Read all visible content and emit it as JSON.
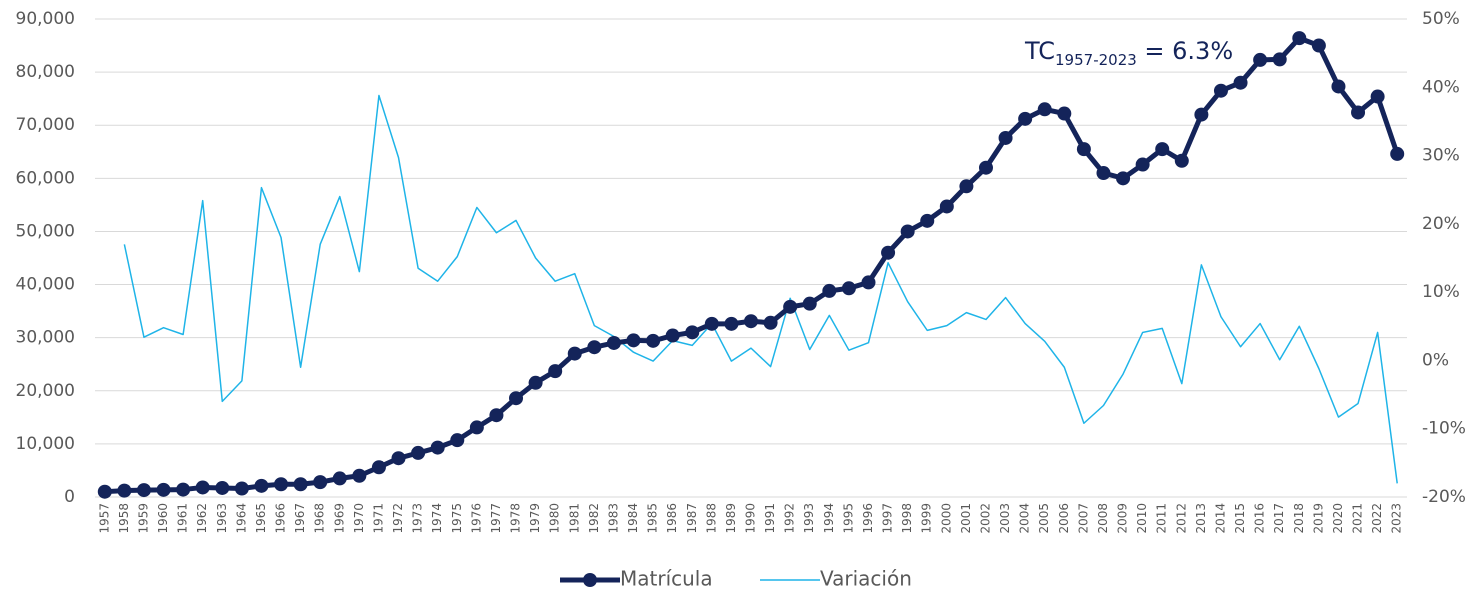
{
  "chart_data": {
    "type": "line",
    "annotation": {
      "main": "TC",
      "subscript": "1957-2023",
      "rest": " = 6.3%"
    },
    "categories": [
      "1957",
      "1958",
      "1959",
      "1960",
      "1961",
      "1962",
      "1963",
      "1964",
      "1965",
      "1966",
      "1967",
      "1968",
      "1969",
      "1970",
      "1971",
      "1972",
      "1973",
      "1974",
      "1975",
      "1976",
      "1977",
      "1978",
      "1979",
      "1980",
      "1981",
      "1982",
      "1983",
      "1984",
      "1985",
      "1986",
      "1987",
      "1988",
      "1989",
      "1990",
      "1991",
      "1992",
      "1993",
      "1994",
      "1995",
      "1996",
      "1997",
      "1998",
      "1999",
      "2000",
      "2001",
      "2002",
      "2003",
      "2004",
      "2005",
      "2006",
      "2007",
      "2008",
      "2009",
      "2010",
      "2011",
      "2012",
      "2013",
      "2014",
      "2015",
      "2016",
      "2017",
      "2018",
      "2019",
      "2020",
      "2021",
      "2022",
      "2023"
    ],
    "series": [
      {
        "name": "Matrícula",
        "color": "#14245a",
        "values": [
          1000,
          1200,
          1300,
          1350,
          1400,
          1800,
          1700,
          1600,
          2100,
          2400,
          2400,
          2800,
          3500,
          4000,
          5600,
          7300,
          8300,
          9300,
          10700,
          13100,
          15400,
          18600,
          21500,
          23700,
          27000,
          28200,
          29000,
          29500,
          29400,
          30400,
          31000,
          32600,
          32600,
          33100,
          32800,
          35800,
          36400,
          38800,
          39300,
          40400,
          46000,
          50000,
          52000,
          54700,
          58500,
          62000,
          67600,
          71200,
          73000,
          72200,
          65500,
          61000,
          60000,
          62600,
          65500,
          63300,
          72000,
          76500,
          78000,
          82300,
          82400,
          86400,
          85000,
          77300,
          72400,
          75400,
          64600
        ]
      },
      {
        "name": "Variación",
        "color": "#1fb4e8",
        "axis": "y2",
        "values": [
          null,
          17,
          3.4,
          4.8,
          3.8,
          23.4,
          -6,
          -3,
          25.3,
          18,
          -1,
          17,
          24,
          13,
          38.8,
          29.7,
          13.5,
          11.6,
          15.2,
          22.4,
          18.7,
          20.5,
          15,
          11.6,
          12.7,
          5.1,
          3.5,
          1.2,
          -0.1,
          2.9,
          2.2,
          5.4,
          -0.1,
          1.8,
          -0.9,
          9.1,
          1.6,
          6.6,
          1.5,
          2.6,
          14.3,
          8.6,
          4.4,
          5.1,
          7,
          6,
          9.2,
          5.4,
          2.8,
          -1,
          -9.2,
          -6.6,
          -2,
          4.1,
          4.7,
          -3.4,
          14,
          6.4,
          2,
          5.4,
          0.1,
          5,
          -1.2,
          -8.3,
          -6.3,
          4.1,
          -18
        ]
      }
    ],
    "ylim": [
      0,
      90000
    ],
    "yticks": [
      0,
      {
        "value": 10000,
        "label": "10,000"
      },
      {
        "value": 20000,
        "label": "20,000"
      },
      {
        "value": 30000,
        "label": "30,000"
      },
      {
        "value": 40000,
        "label": "40,000"
      },
      {
        "value": 50000,
        "label": "50,000"
      },
      {
        "value": 60000,
        "label": "60,000"
      },
      {
        "value": 70000,
        "label": "70,000"
      },
      {
        "value": 80000,
        "label": "80,000"
      },
      {
        "value": 90000,
        "label": "90,000"
      }
    ],
    "y2lim": [
      -20,
      50
    ],
    "y2ticks": [
      {
        "value": -20,
        "label": "-20%"
      },
      {
        "value": -10,
        "label": "-10%"
      },
      {
        "value": 0,
        "label": "0%"
      },
      {
        "value": 10,
        "label": "10%"
      },
      {
        "value": 20,
        "label": "20%"
      },
      {
        "value": 30,
        "label": "30%"
      },
      {
        "value": 40,
        "label": "40%"
      },
      {
        "value": 50,
        "label": "50%"
      }
    ],
    "grid": true,
    "legend": "bottom"
  }
}
